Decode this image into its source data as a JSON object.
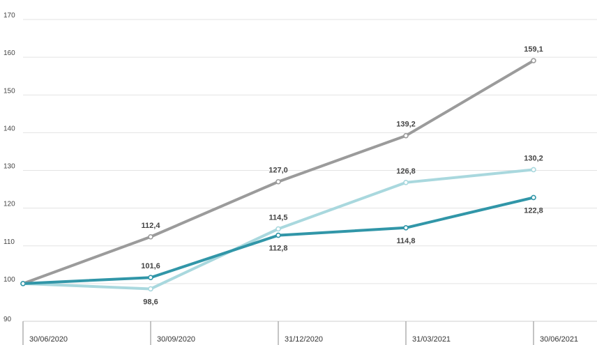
{
  "chart_data": {
    "type": "line",
    "categories": [
      "30/06/2020",
      "30/09/2020",
      "31/12/2020",
      "31/03/2021",
      "30/06/2021"
    ],
    "ylim": [
      90,
      170
    ],
    "yticks": [
      90,
      100,
      110,
      120,
      130,
      140,
      150,
      160,
      170
    ],
    "grid": true,
    "series": [
      {
        "name": "series-gray",
        "color": "#9b9b9b",
        "values": [
          100,
          112.4,
          127.0,
          139.2,
          159.1
        ],
        "labels": [
          "",
          "112,4",
          "127,0",
          "139,2",
          "159,1"
        ],
        "label_pos": [
          "above",
          "above",
          "above",
          "above",
          "above"
        ]
      },
      {
        "name": "series-light-blue",
        "color": "#a9d8de",
        "values": [
          100,
          98.6,
          114.5,
          126.8,
          130.2
        ],
        "labels": [
          "",
          "98,6",
          "114,5",
          "126,8",
          "130,2"
        ],
        "label_pos": [
          "below",
          "below",
          "above",
          "above",
          "above"
        ]
      },
      {
        "name": "series-teal",
        "color": "#3196a8",
        "values": [
          100,
          101.6,
          112.8,
          114.8,
          122.8
        ],
        "labels": [
          "",
          "101,6",
          "112,8",
          "114,8",
          "122,8"
        ],
        "label_pos": [
          "above",
          "above",
          "below",
          "below",
          "below"
        ]
      }
    ]
  }
}
